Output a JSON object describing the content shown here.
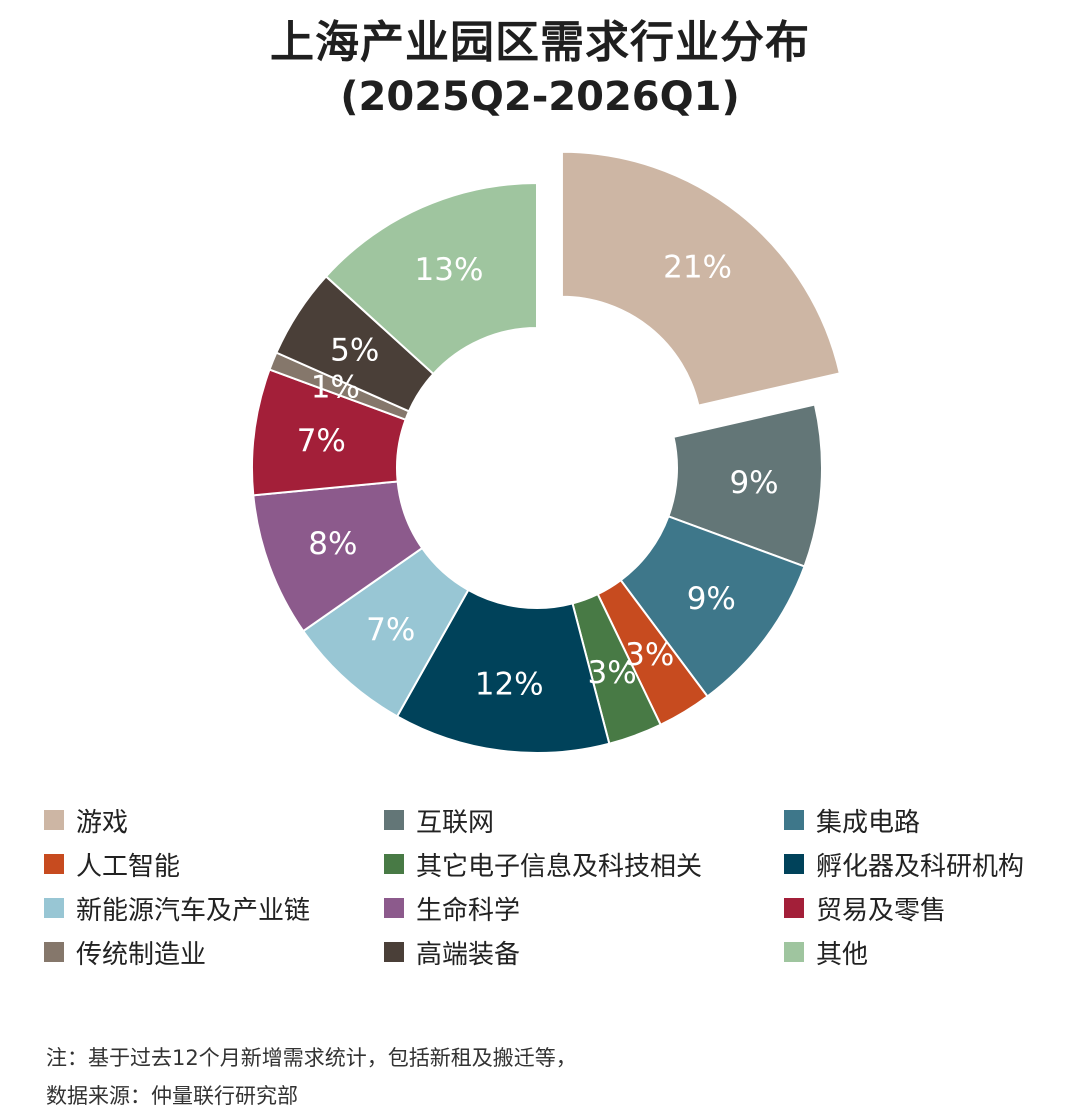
{
  "chart_data": {
    "type": "pie",
    "donut": true,
    "title": "上海产业园区需求行业分布",
    "subtitle": "(2025Q2-2026Q1)",
    "legend_position": "bottom",
    "slices": [
      {
        "label": "游戏",
        "value": 21,
        "display": "21%",
        "color": "#cdb6a4",
        "exploded": true
      },
      {
        "label": "互联网",
        "value": 9,
        "display": "9%",
        "color": "#637677"
      },
      {
        "label": "集成电路",
        "value": 9,
        "display": "9%",
        "color": "#3e778a"
      },
      {
        "label": "人工智能",
        "value": 3,
        "display": "3%",
        "color": "#c74b1f"
      },
      {
        "label": "其它电子信息及科技相关",
        "value": 3,
        "display": "3%",
        "color": "#487a45"
      },
      {
        "label": "孵化器及科研机构",
        "value": 12,
        "display": "12%",
        "color": "#00425a"
      },
      {
        "label": "新能源汽车及产业链",
        "value": 7,
        "display": "7%",
        "color": "#98c6d4"
      },
      {
        "label": "生命科学",
        "value": 8,
        "display": "8%",
        "color": "#8c5a8c"
      },
      {
        "label": "贸易及零售",
        "value": 7,
        "display": "7%",
        "color": "#a31f39"
      },
      {
        "label": "传统制造业",
        "value": 1,
        "display": "1%",
        "color": "#85776b"
      },
      {
        "label": "高端装备",
        "value": 5,
        "display": "5%",
        "color": "#4a3f38"
      },
      {
        "label": "其他",
        "value": 13,
        "display": "13%",
        "color": "#9fc59f"
      }
    ]
  },
  "notes": {
    "line1": "注：基于过去12个月新增需求统计，包括新租及搬迁等，",
    "line2": "数据来源：仲量联行研究部"
  }
}
